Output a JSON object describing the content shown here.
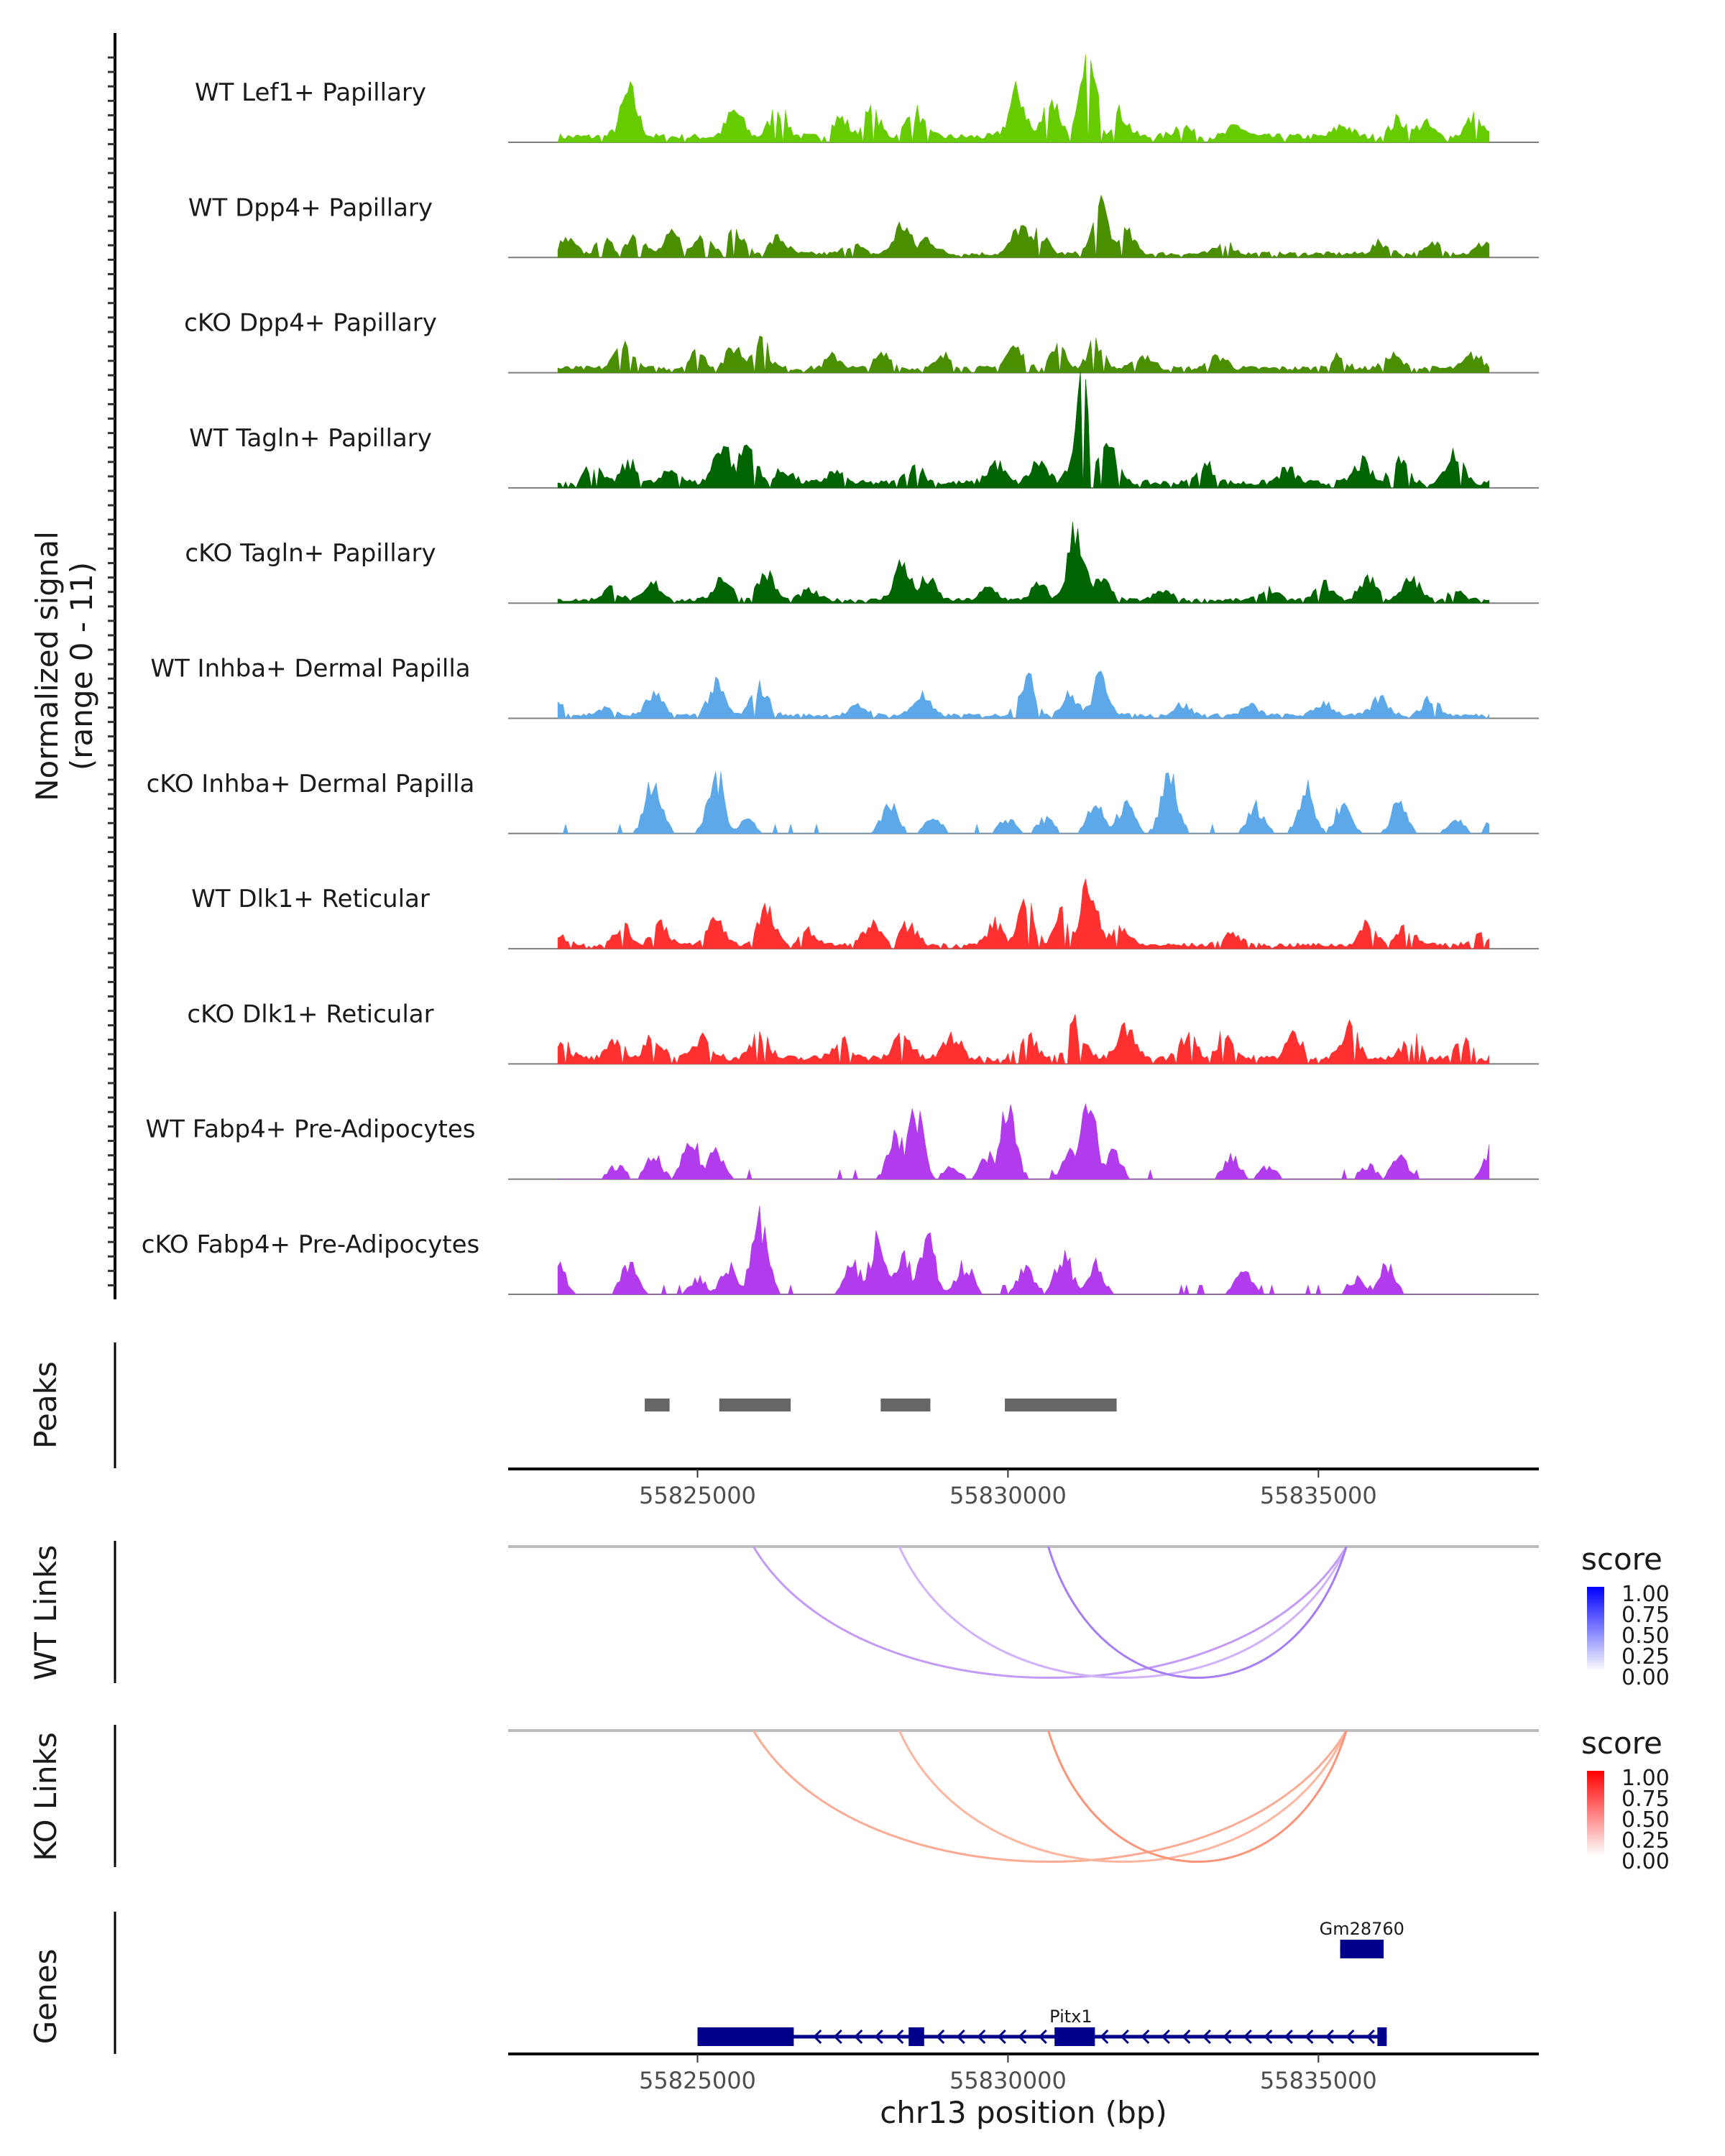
{
  "chart_data": {
    "type": "area",
    "title": "",
    "region": {
      "chromosome": "chr13",
      "start": 55821950,
      "end": 55838550
    },
    "coverage_axis": {
      "ylabel_line1": "Normalized signal",
      "ylabel_line2": "(range 0 - 11)",
      "ylim": [
        0,
        11
      ]
    },
    "x_axis": {
      "xlabel": "chr13 position (bp)",
      "ticks": [
        55825000,
        55830000,
        55835000
      ],
      "tick_labels": [
        "55825000",
        "55830000",
        "55835000"
      ]
    },
    "tracks": [
      {
        "name": "WT Lef1+ Papillary",
        "color": "#66CC00",
        "peaks": [
          [
            55823900,
            3.3
          ],
          [
            55825600,
            1.9
          ],
          [
            55826300,
            2.1
          ],
          [
            55827300,
            1.4
          ],
          [
            55827800,
            1.8
          ],
          [
            55828500,
            1.9
          ],
          [
            55830150,
            3.3
          ],
          [
            55830700,
            2.8
          ],
          [
            55831300,
            5.2
          ],
          [
            55831800,
            1.8
          ],
          [
            55832800,
            0.9
          ],
          [
            55833700,
            0.8
          ],
          [
            55835400,
            0.9
          ],
          [
            55836300,
            1.3
          ],
          [
            55836700,
            1.0
          ],
          [
            55837500,
            1.4
          ]
        ],
        "floor": 0.45
      },
      {
        "name": "WT Dpp4+ Papillary",
        "color": "#4A8F00",
        "peaks": [
          [
            55822900,
            1.0
          ],
          [
            55823500,
            0.9
          ],
          [
            55824000,
            1.6
          ],
          [
            55824600,
            1.4
          ],
          [
            55825100,
            1.6
          ],
          [
            55825600,
            1.6
          ],
          [
            55826300,
            1.2
          ],
          [
            55827500,
            0.7
          ],
          [
            55828300,
            2.2
          ],
          [
            55828700,
            1.2
          ],
          [
            55830200,
            2.0
          ],
          [
            55830500,
            1.5
          ],
          [
            55831500,
            3.4
          ],
          [
            55831900,
            1.6
          ],
          [
            55833500,
            0.8
          ],
          [
            55836000,
            0.8
          ],
          [
            55836900,
            0.8
          ],
          [
            55837700,
            0.9
          ]
        ],
        "floor": 0.3
      },
      {
        "name": "cKO Dpp4+ Papillary",
        "color": "#4A8F00",
        "peaks": [
          [
            55823800,
            1.8
          ],
          [
            55825000,
            1.2
          ],
          [
            55825600,
            1.6
          ],
          [
            55826000,
            2.3
          ],
          [
            55827200,
            0.9
          ],
          [
            55828000,
            1.0
          ],
          [
            55829000,
            0.9
          ],
          [
            55830100,
            1.6
          ],
          [
            55830800,
            1.5
          ],
          [
            55831400,
            1.8
          ],
          [
            55832200,
            1.0
          ],
          [
            55833400,
            0.9
          ],
          [
            55835300,
            0.8
          ],
          [
            55836200,
            0.9
          ],
          [
            55837500,
            1.0
          ]
        ],
        "floor": 0.35
      },
      {
        "name": "WT Tagln+ Papillary",
        "color": "#006400",
        "peaks": [
          [
            55823300,
            1.2
          ],
          [
            55823900,
            1.4
          ],
          [
            55824600,
            1.0
          ],
          [
            55825400,
            3.1
          ],
          [
            55825800,
            2.9
          ],
          [
            55826400,
            1.0
          ],
          [
            55827200,
            0.8
          ],
          [
            55828500,
            1.3
          ],
          [
            55829800,
            1.5
          ],
          [
            55830500,
            1.6
          ],
          [
            55831200,
            7.0
          ],
          [
            55831600,
            3.3
          ],
          [
            55833200,
            1.3
          ],
          [
            55834500,
            1.0
          ],
          [
            55835700,
            1.5
          ],
          [
            55836300,
            1.8
          ],
          [
            55837200,
            2.5
          ]
        ],
        "floor": 0.4
      },
      {
        "name": "cKO Tagln+ Papillary",
        "color": "#006400",
        "peaks": [
          [
            55823600,
            0.9
          ],
          [
            55824300,
            1.2
          ],
          [
            55825400,
            1.8
          ],
          [
            55826100,
            2.0
          ],
          [
            55826800,
            0.7
          ],
          [
            55828300,
            2.8
          ],
          [
            55828700,
            1.6
          ],
          [
            55829700,
            0.9
          ],
          [
            55830500,
            1.1
          ],
          [
            55831100,
            5.4
          ],
          [
            55831500,
            1.5
          ],
          [
            55832500,
            0.7
          ],
          [
            55834200,
            0.8
          ],
          [
            55835100,
            1.2
          ],
          [
            55835800,
            1.8
          ],
          [
            55836500,
            1.6
          ],
          [
            55837200,
            0.6
          ]
        ],
        "floor": 0.25
      },
      {
        "name": "WT Inhba+ Dermal Papilla",
        "color": "#5DA8E8",
        "peaks": [
          [
            55822700,
            1.1
          ],
          [
            55823500,
            0.5
          ],
          [
            55824300,
            1.5
          ],
          [
            55825300,
            2.2
          ],
          [
            55826000,
            2.1
          ],
          [
            55827600,
            0.7
          ],
          [
            55828600,
            1.5
          ],
          [
            55830300,
            2.8
          ],
          [
            55831000,
            1.5
          ],
          [
            55831500,
            2.8
          ],
          [
            55832800,
            0.8
          ],
          [
            55833900,
            0.7
          ],
          [
            55835100,
            1.0
          ],
          [
            55836000,
            1.3
          ],
          [
            55836800,
            1.2
          ],
          [
            55838300,
            1.4
          ]
        ],
        "floor": 0.25
      },
      {
        "name": "cKO Inhba+ Dermal Papilla",
        "color": "#5DA8E8",
        "peaks": [
          [
            55824300,
            4.3
          ],
          [
            55825300,
            4.2
          ],
          [
            55825800,
            1.1
          ],
          [
            55828100,
            2.2
          ],
          [
            55828800,
            1.1
          ],
          [
            55830000,
            1.1
          ],
          [
            55830600,
            1.1
          ],
          [
            55831400,
            2.2
          ],
          [
            55831900,
            2.2
          ],
          [
            55832600,
            4.2
          ],
          [
            55834000,
            2.0
          ],
          [
            55834800,
            3.2
          ],
          [
            55835400,
            2.2
          ],
          [
            55836300,
            2.2
          ],
          [
            55837200,
            1.1
          ],
          [
            55837900,
            2.0
          ]
        ],
        "floor": 0
      },
      {
        "name": "WT Dlk1+ Reticular",
        "color": "#FF3030",
        "peaks": [
          [
            55822800,
            0.6
          ],
          [
            55823800,
            1.3
          ],
          [
            55824400,
            1.7
          ],
          [
            55825300,
            2.0
          ],
          [
            55826100,
            2.6
          ],
          [
            55826800,
            1.0
          ],
          [
            55827800,
            1.5
          ],
          [
            55828400,
            1.5
          ],
          [
            55829800,
            1.6
          ],
          [
            55830300,
            2.9
          ],
          [
            55830900,
            2.6
          ],
          [
            55831300,
            4.5
          ],
          [
            55831800,
            1.5
          ],
          [
            55833600,
            0.9
          ],
          [
            55835800,
            1.5
          ],
          [
            55836400,
            1.5
          ],
          [
            55837600,
            0.8
          ]
        ],
        "floor": 0.3
      },
      {
        "name": "cKO Dlk1+ Reticular",
        "color": "#FF3030",
        "peaks": [
          [
            55822800,
            1.4
          ],
          [
            55823700,
            1.2
          ],
          [
            55824300,
            1.6
          ],
          [
            55825100,
            1.9
          ],
          [
            55826000,
            2.0
          ],
          [
            55827300,
            1.5
          ],
          [
            55828300,
            2.0
          ],
          [
            55829100,
            1.7
          ],
          [
            55830300,
            2.0
          ],
          [
            55831100,
            2.6
          ],
          [
            55831900,
            2.2
          ],
          [
            55832900,
            1.6
          ],
          [
            55833500,
            1.8
          ],
          [
            55834600,
            1.7
          ],
          [
            55835500,
            2.2
          ],
          [
            55836500,
            1.7
          ],
          [
            55837300,
            1.5
          ]
        ],
        "floor": 0.45
      },
      {
        "name": "WT Fabp4+ Pre-Adipocytes",
        "color": "#B23BEE",
        "peaks": [
          [
            55823700,
            1.0
          ],
          [
            55824300,
            1.6
          ],
          [
            55824900,
            2.8
          ],
          [
            55825300,
            2.3
          ],
          [
            55828200,
            3.1
          ],
          [
            55828500,
            5.2
          ],
          [
            55829100,
            1.0
          ],
          [
            55829700,
            1.8
          ],
          [
            55830000,
            4.8
          ],
          [
            55831000,
            1.9
          ],
          [
            55831300,
            6.0
          ],
          [
            55831700,
            1.8
          ],
          [
            55833600,
            1.6
          ],
          [
            55834200,
            1.0
          ],
          [
            55835800,
            1.0
          ],
          [
            55836300,
            1.6
          ],
          [
            55837800,
            2.3
          ]
        ],
        "floor": 0
      },
      {
        "name": "cKO Fabp4+ Pre-Adipocytes",
        "color": "#B23BEE",
        "peaks": [
          [
            55822750,
            2.1
          ],
          [
            55823900,
            2.1
          ],
          [
            55825000,
            1.2
          ],
          [
            55825500,
            2.1
          ],
          [
            55826000,
            5.7
          ],
          [
            55827500,
            2.3
          ],
          [
            55827900,
            3.8
          ],
          [
            55828300,
            3.0
          ],
          [
            55828700,
            3.8
          ],
          [
            55829300,
            2.2
          ],
          [
            55830300,
            2.1
          ],
          [
            55830900,
            2.9
          ],
          [
            55831400,
            2.1
          ],
          [
            55833800,
            2.0
          ],
          [
            55835600,
            1.1
          ],
          [
            55836100,
            2.0
          ]
        ],
        "floor": 0
      }
    ],
    "peaks_track": {
      "title": "Peaks",
      "color": "#666666",
      "regions": [
        [
          55824150,
          55824550
        ],
        [
          55825350,
          55826500
        ],
        [
          55827950,
          55828750
        ],
        [
          55829950,
          55831750
        ]
      ]
    },
    "link_tracks": [
      {
        "title": "WT Links",
        "low_color": "#FFFFFF",
        "high_color": "#0000FF",
        "links": [
          {
            "start": 55825900,
            "end": 55835450,
            "score": 0.45
          },
          {
            "start": 55828250,
            "end": 55835450,
            "score": 0.35
          },
          {
            "start": 55830650,
            "end": 55835450,
            "score": 0.55
          }
        ]
      },
      {
        "title": "KO Links",
        "low_color": "#FFFFFF",
        "high_color": "#FF0000",
        "links": [
          {
            "start": 55825900,
            "end": 55835450,
            "score": 0.4
          },
          {
            "start": 55828250,
            "end": 55835450,
            "score": 0.35
          },
          {
            "start": 55830650,
            "end": 55835450,
            "score": 0.5
          }
        ]
      }
    ],
    "legend": {
      "title": "score",
      "ticks": [
        "1.00",
        "0.75",
        "0.50",
        "0.25",
        "0.00"
      ]
    },
    "genes_track": {
      "title": "Genes",
      "color": "#00008B",
      "genes": [
        {
          "name": "Gm28760",
          "strand": "+",
          "row": 0,
          "start": 55835350,
          "end": 55836050,
          "exons": [
            [
              55835350,
              55836050
            ]
          ]
        },
        {
          "name": "Pitx1",
          "strand": "-",
          "row": 1,
          "start": 55825000,
          "end": 55836100,
          "exons": [
            [
              55825000,
              55826550
            ],
            [
              55828400,
              55828650
            ],
            [
              55830750,
              55831400
            ],
            [
              55835950,
              55836100
            ]
          ]
        }
      ]
    }
  }
}
